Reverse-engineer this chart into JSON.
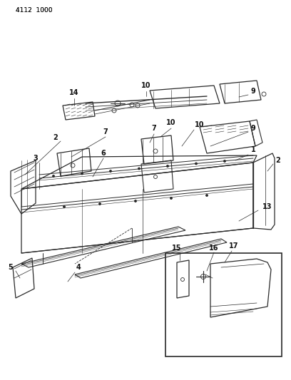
{
  "bg_color": "#ffffff",
  "line_color": "#2a2a2a",
  "text_color": "#111111",
  "header_text": "4112  1000",
  "fig_width": 4.08,
  "fig_height": 5.33,
  "dpi": 100
}
